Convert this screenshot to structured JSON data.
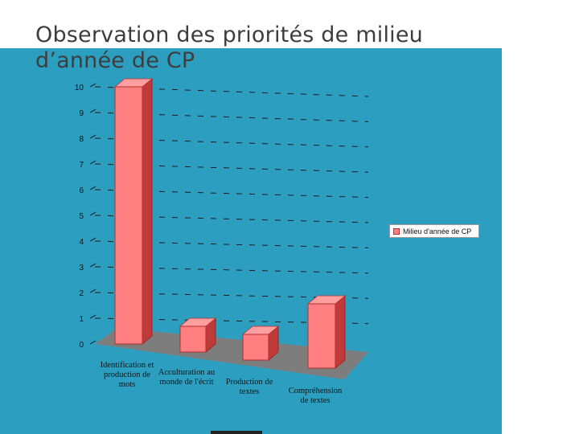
{
  "slide": {
    "title_line1": "Observation des priorités de milieu",
    "title_line2": "d’année de CP"
  },
  "colors": {
    "background_panel": "#2c9fc0",
    "bar_front": "#ff7f80",
    "bar_side": "#c03a3a",
    "bar_top": "#ff9f9f",
    "floor": "#7d7d7d"
  },
  "chart_data": {
    "type": "bar",
    "categories": [
      [
        "Identification et",
        "production de",
        "mots"
      ],
      [
        "Acculturation au",
        "monde de l'écrit"
      ],
      [
        "Production de",
        "textes"
      ],
      [
        "Compréhension",
        "de textes"
      ]
    ],
    "series": [
      {
        "name": "Milieu d'année de CP",
        "values": [
          10,
          1,
          1,
          2.5
        ]
      }
    ],
    "yticks": [
      "0",
      "1",
      "2",
      "3",
      "4",
      "5",
      "6",
      "7",
      "8",
      "9",
      "10"
    ],
    "ylim": [
      0,
      10
    ],
    "grid": true,
    "legend_position": "right"
  }
}
